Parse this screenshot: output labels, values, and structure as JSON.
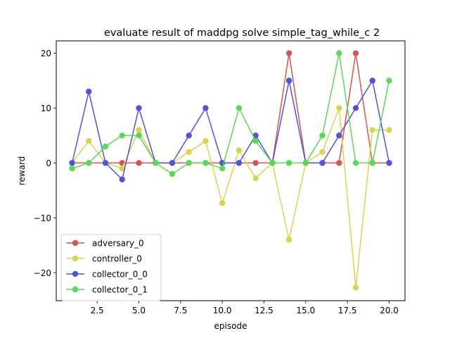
{
  "chart_data": {
    "type": "line",
    "title": "evaluate result of maddpg solve simple_tag_while_c 2",
    "xlabel": "episode",
    "ylabel": "reward",
    "xlim": [
      0.05,
      20.95
    ],
    "ylim": [
      -25.1,
      22.25
    ],
    "xticks": [
      2.5,
      5.0,
      7.5,
      10.0,
      12.5,
      15.0,
      17.5,
      20.0
    ],
    "xtick_labels": [
      "2.5",
      "5.0",
      "7.5",
      "10.0",
      "12.5",
      "15.0",
      "17.5",
      "20.0"
    ],
    "yticks": [
      -20,
      -10,
      0,
      10,
      20
    ],
    "ytick_labels": [
      "−20",
      "−10",
      "0",
      "10",
      "20"
    ],
    "legend_position": "lower-left",
    "grid": false,
    "x": [
      1,
      2,
      3,
      4,
      5,
      6,
      7,
      8,
      9,
      10,
      11,
      12,
      13,
      14,
      15,
      16,
      17,
      18,
      19,
      20
    ],
    "series": [
      {
        "name": "adversary_0",
        "color": "#d65353",
        "values": [
          0,
          0,
          0,
          0,
          0,
          0,
          0,
          0,
          0,
          0,
          0,
          0,
          0,
          20,
          0,
          0,
          0,
          20,
          0,
          0
        ]
      },
      {
        "name": "controller_0",
        "color": "#d8d450",
        "values": [
          0,
          4,
          0,
          -1,
          6,
          0,
          0,
          2,
          4,
          -7.3,
          2.3,
          -2.8,
          0,
          -14,
          0,
          2,
          10,
          -22.7,
          6,
          6
        ]
      },
      {
        "name": "collector_0_0",
        "color": "#5353d6",
        "values": [
          0,
          13,
          0,
          -3,
          10,
          0,
          0,
          5,
          10,
          0,
          0,
          5,
          0,
          15,
          0,
          0,
          5,
          10,
          15,
          0
        ]
      },
      {
        "name": "collector_0_1",
        "color": "#59d859",
        "values": [
          -1,
          0,
          3,
          5,
          5,
          0,
          -2,
          0,
          0,
          -1,
          10,
          4,
          0,
          0,
          0,
          5,
          20,
          0,
          0,
          15
        ]
      }
    ]
  }
}
